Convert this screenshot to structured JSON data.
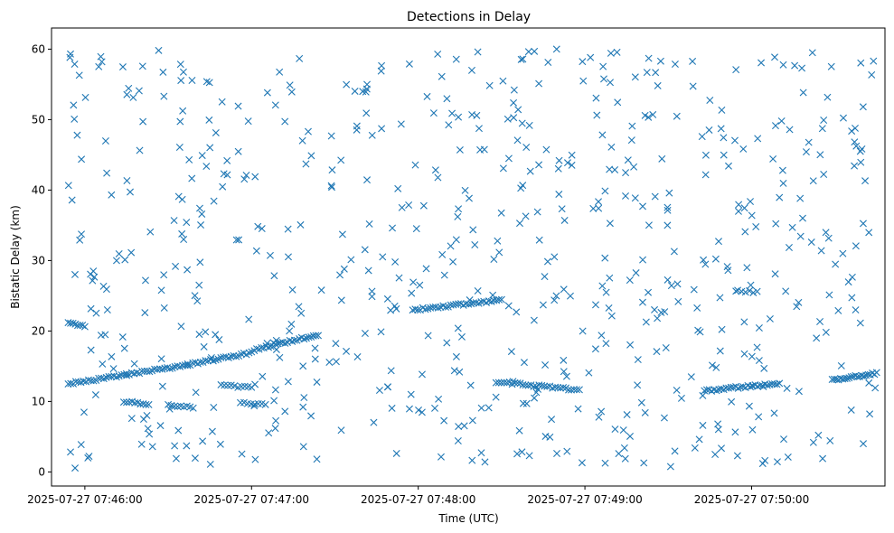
{
  "chart_data": {
    "type": "scatter",
    "title": "Detections in Delay",
    "xlabel": "Time (UTC)",
    "ylabel": "Bistatic Delay (km)",
    "marker": "x",
    "marker_color": "#1f77b4",
    "grid": false,
    "xlim": [
      "2025-07-27 07:45:48",
      "2025-07-27 07:50:48"
    ],
    "ylim": [
      -2,
      63
    ],
    "x_ticks": [
      "2025-07-27 07:46:00",
      "2025-07-27 07:47:00",
      "2025-07-27 07:48:00",
      "2025-07-27 07:49:00",
      "2025-07-27 07:50:00"
    ],
    "y_ticks": [
      0,
      10,
      20,
      30,
      40,
      50,
      60
    ],
    "tracks": [
      {
        "start": "2025-07-27 07:45:54",
        "end": "2025-07-27 07:46:37",
        "y_start": 12.5,
        "y_end": 15.2,
        "points": 48
      },
      {
        "start": "2025-07-27 07:46:37",
        "end": "2025-07-27 07:47:00",
        "y_start": 15.2,
        "y_end": 16.9,
        "points": 26
      },
      {
        "start": "2025-07-27 07:47:01",
        "end": "2025-07-27 07:47:24",
        "y_start": 17.3,
        "y_end": 19.5,
        "points": 28
      },
      {
        "start": "2025-07-27 07:47:58",
        "end": "2025-07-27 07:48:30",
        "y_start": 23.0,
        "y_end": 24.4,
        "points": 36
      },
      {
        "start": "2025-07-27 07:48:28",
        "end": "2025-07-27 07:48:58",
        "y_start": 12.8,
        "y_end": 11.6,
        "points": 32
      },
      {
        "start": "2025-07-27 07:49:43",
        "end": "2025-07-27 07:50:10",
        "y_start": 11.5,
        "y_end": 12.6,
        "points": 32
      },
      {
        "start": "2025-07-27 07:50:29",
        "end": "2025-07-27 07:50:45",
        "y_start": 13.0,
        "y_end": 14.0,
        "points": 22
      },
      {
        "start": "2025-07-27 07:45:54",
        "end": "2025-07-27 07:46:00",
        "y_start": 21.2,
        "y_end": 20.7,
        "points": 8
      },
      {
        "start": "2025-07-27 07:46:14",
        "end": "2025-07-27 07:46:23",
        "y_start": 10.0,
        "y_end": 9.6,
        "points": 10
      },
      {
        "start": "2025-07-27 07:46:30",
        "end": "2025-07-27 07:46:39",
        "y_start": 9.5,
        "y_end": 9.2,
        "points": 9
      },
      {
        "start": "2025-07-27 07:46:49",
        "end": "2025-07-27 07:47:00",
        "y_start": 12.3,
        "y_end": 12.0,
        "points": 10
      },
      {
        "start": "2025-07-27 07:46:56",
        "end": "2025-07-27 07:47:05",
        "y_start": 9.8,
        "y_end": 9.6,
        "points": 8
      },
      {
        "start": "2025-07-27 07:49:55",
        "end": "2025-07-27 07:50:02",
        "y_start": 25.7,
        "y_end": 25.5,
        "points": 6
      }
    ],
    "scattered": {
      "count": 640,
      "start": "2025-07-27 07:45:54",
      "end": "2025-07-27 07:50:45",
      "y_min": 0.5,
      "y_max": 60
    }
  }
}
